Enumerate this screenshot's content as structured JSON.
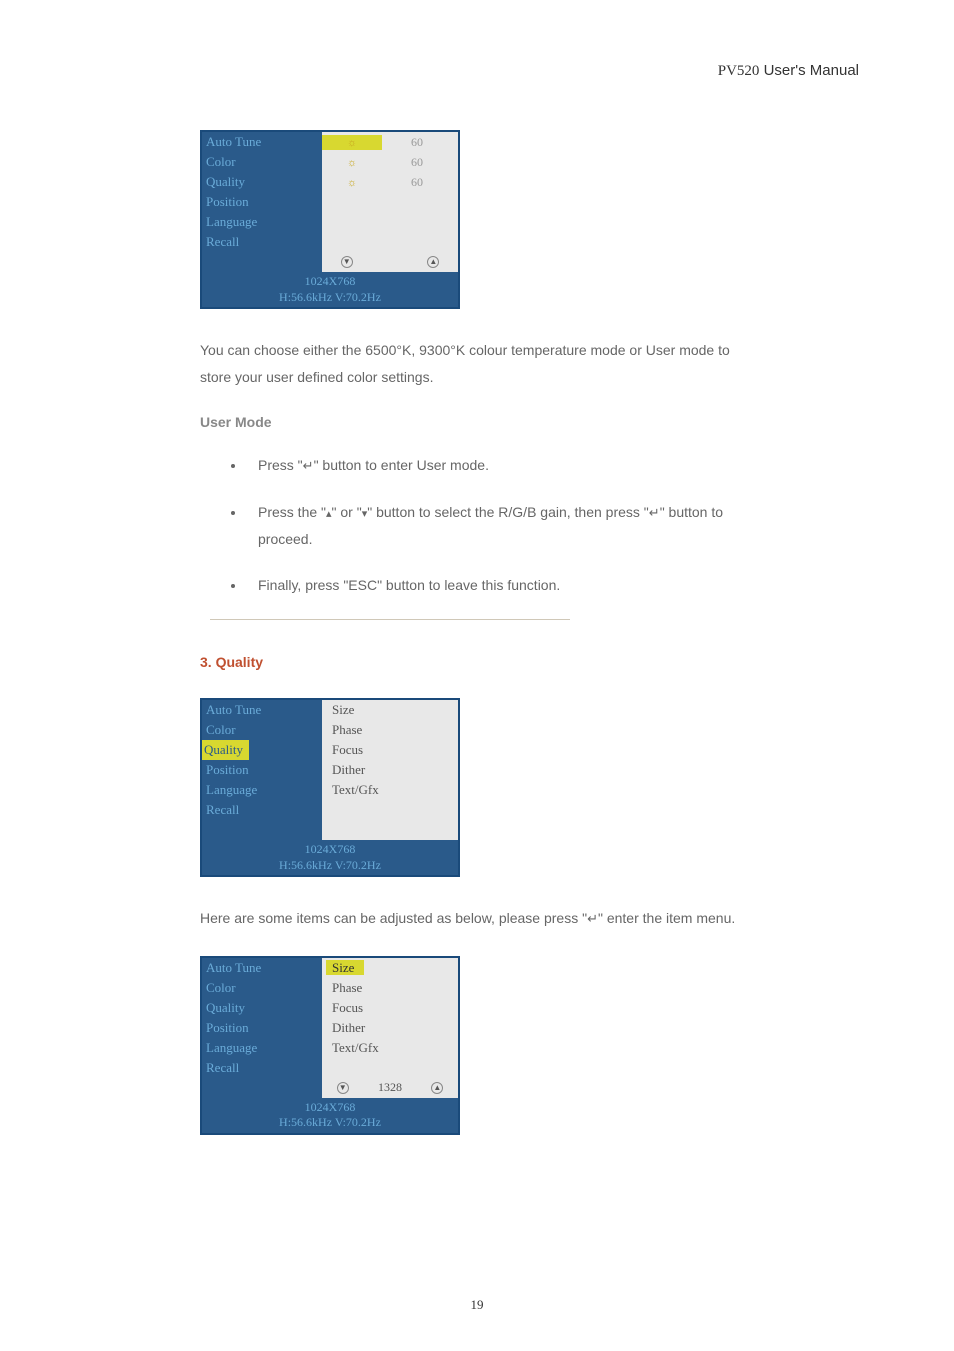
{
  "header": {
    "model": "PV520",
    "title": "User's Manual"
  },
  "osd1": {
    "menu": [
      "Auto Tune",
      "Color",
      "Quality",
      "Position",
      "Language",
      "Recall"
    ],
    "menu_colors": {
      "bg": "#2a5a8a",
      "fg": "#6aabd8",
      "hl_bg": "#d8d830",
      "hl_fg": "#2a5a8a"
    },
    "icons": [
      "sun",
      "sun",
      "sun"
    ],
    "values": [
      "60",
      "60",
      "60"
    ],
    "highlighted_icon_index": 0,
    "footer_res": "1024X768",
    "footer_freq": "H:56.6kHz V:70.2Hz"
  },
  "para1": "You can choose either the 6500°K, 9300°K colour temperature mode or User mode to store your user defined color settings.",
  "usermode_heading": "User Mode",
  "steps": [
    {
      "pre": "Press \"",
      "icon": "enter",
      "post": "\" button to enter User mode."
    },
    {
      "pre": "Press the \"",
      "icon": "up",
      "mid": "\" or \"",
      "icon2": "down",
      "mid2": "\" button to select the R/G/B gain, then press \"",
      "icon3": "enter",
      "post": "\" button to proceed."
    },
    {
      "pre": "Finally, press \"ESC\" button to leave this function."
    }
  ],
  "section3_heading": "3. Quality",
  "osd2": {
    "menu": [
      "Auto Tune",
      "Color",
      "Quality",
      "Position",
      "Language",
      "Recall"
    ],
    "highlighted_index": 2,
    "submenu": [
      "Size",
      "Phase",
      "Focus",
      "Dither",
      "Text/Gfx"
    ],
    "footer_res": "1024X768",
    "footer_freq": "H:56.6kHz V:70.2Hz"
  },
  "para2_pre": "Here are some items can be adjusted as below, please press \"",
  "para2_post": "\" enter the item menu.",
  "osd3": {
    "menu": [
      "Auto Tune",
      "Color",
      "Quality",
      "Position",
      "Language",
      "Recall"
    ],
    "submenu": [
      "Size",
      "Phase",
      "Focus",
      "Dither",
      "Text/Gfx"
    ],
    "highlighted_sub_index": 0,
    "slider_value": "1328",
    "footer_res": "1024X768",
    "footer_freq": "H:56.6kHz V:70.2Hz"
  },
  "page_number": "19"
}
